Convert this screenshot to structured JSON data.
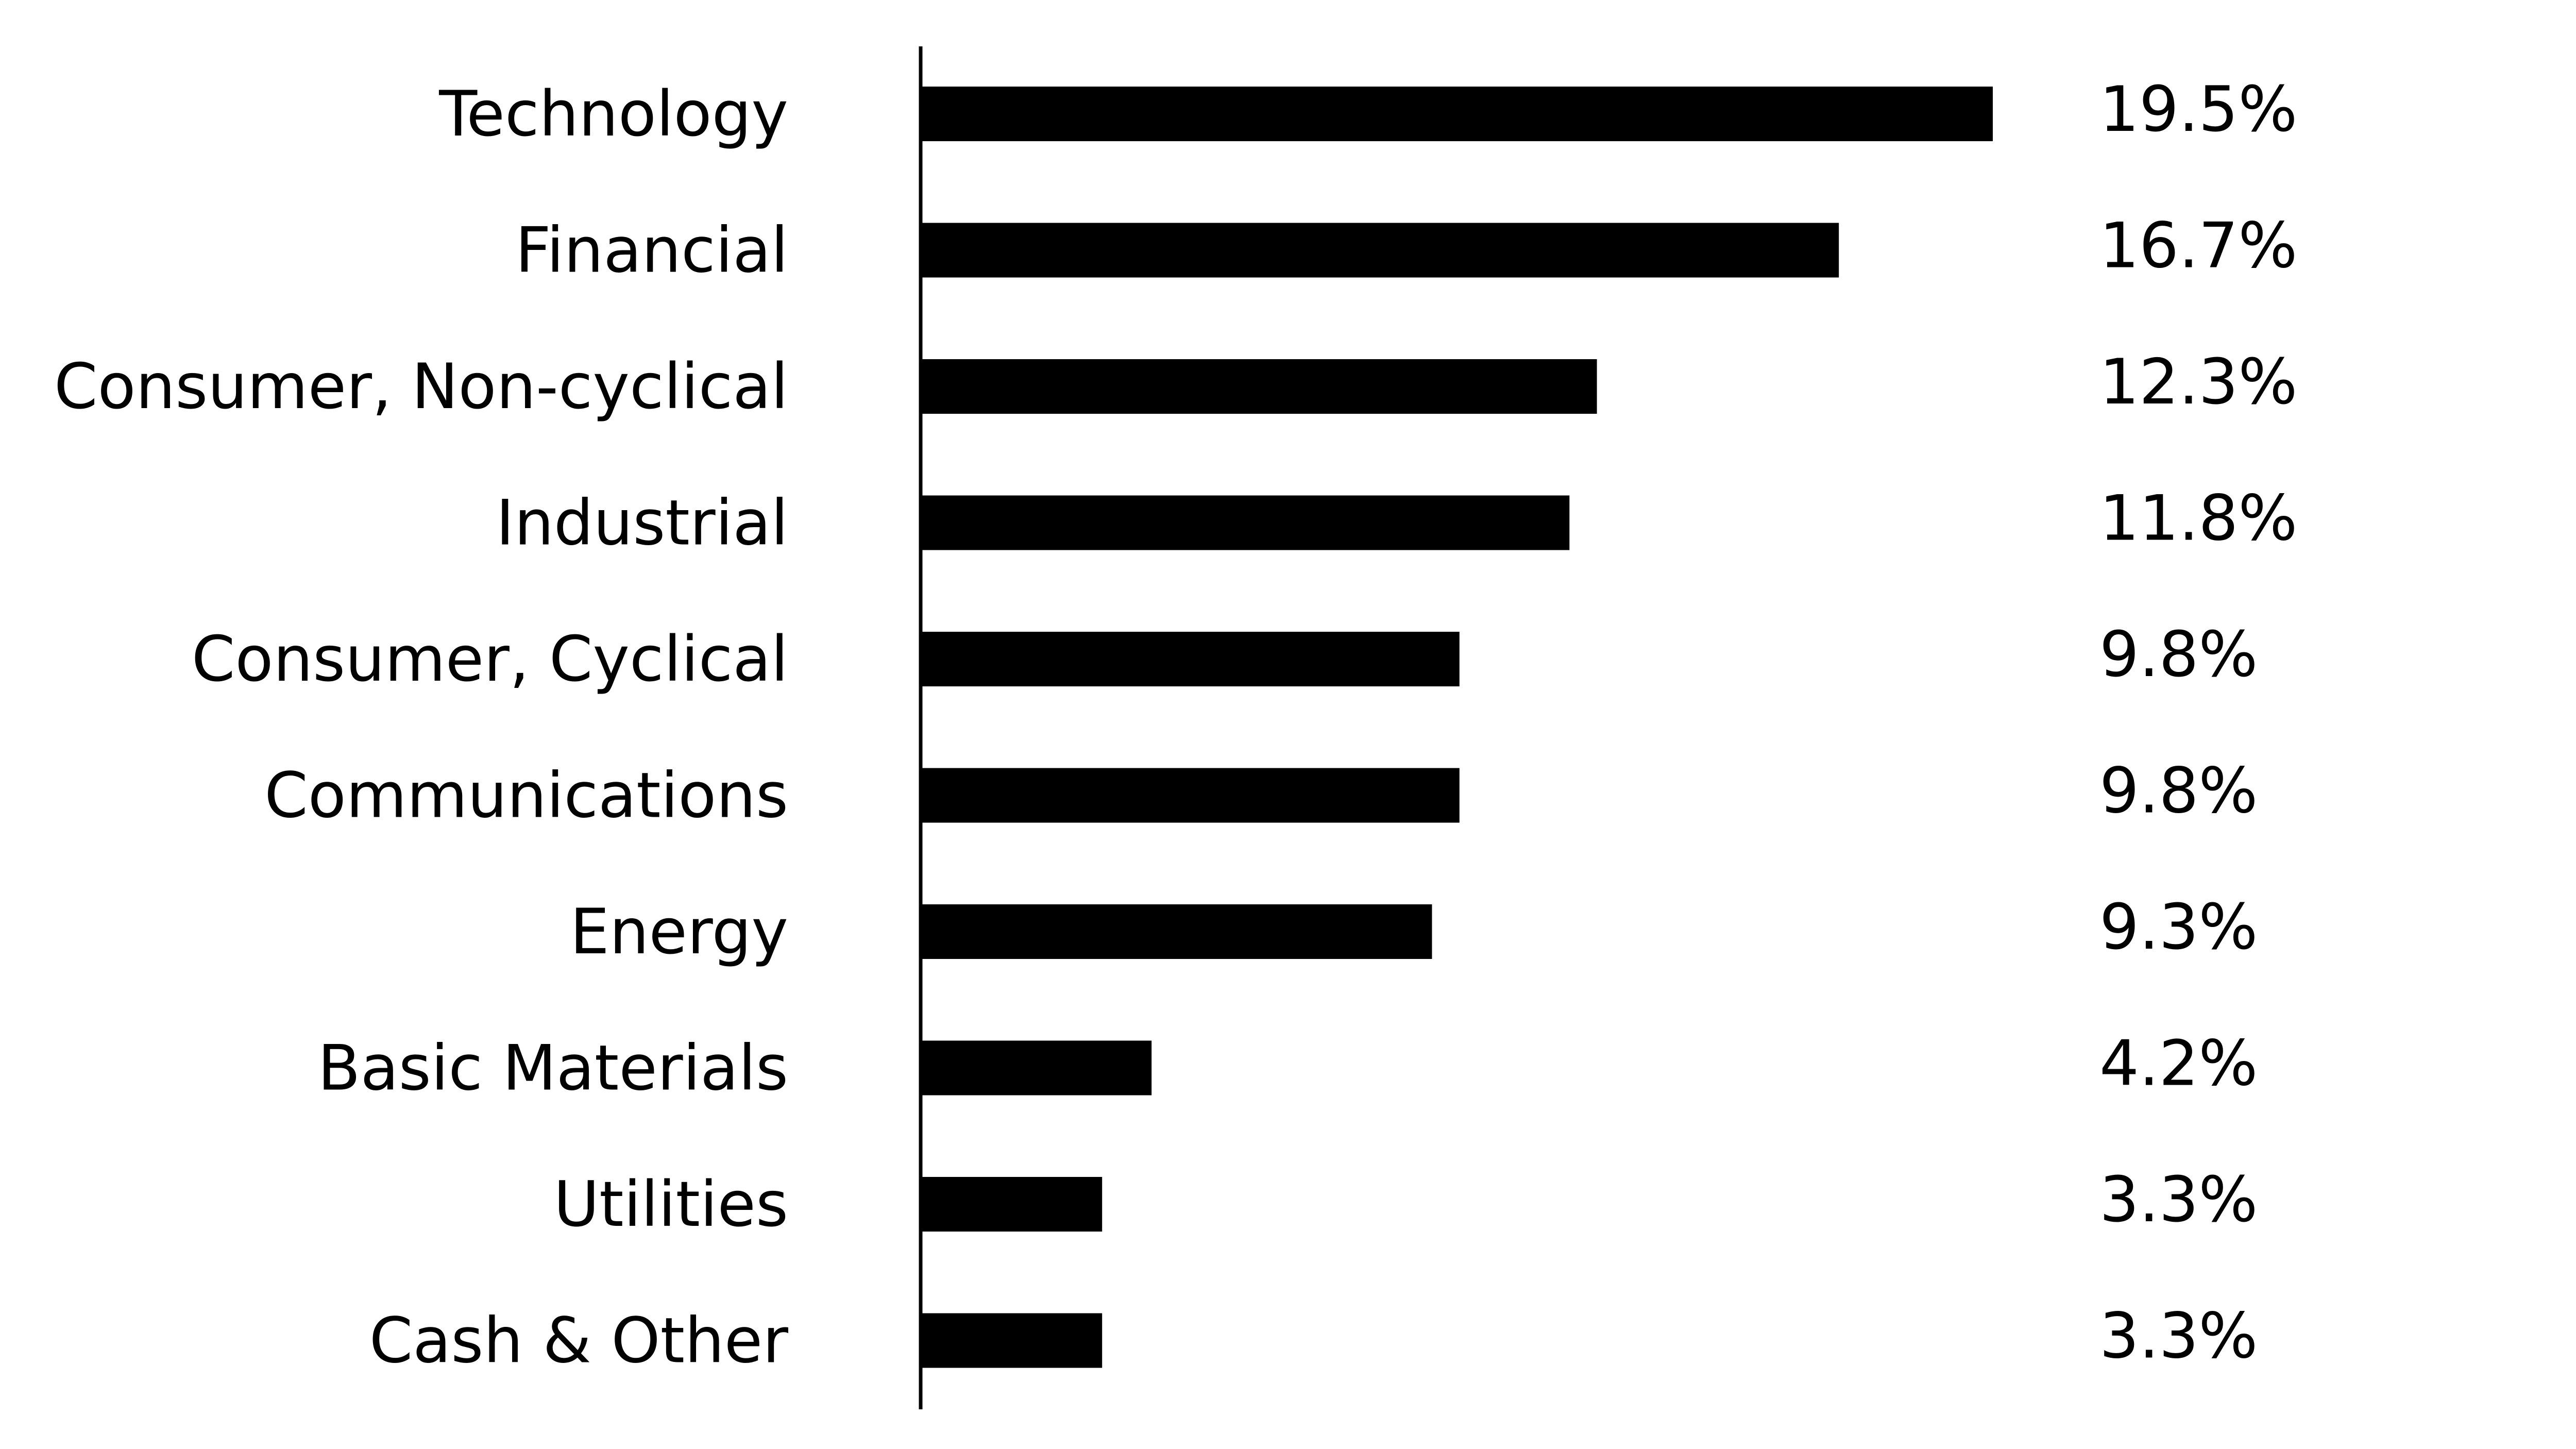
{
  "chart_data": {
    "type": "bar",
    "orientation": "horizontal",
    "categories": [
      "Technology",
      "Financial",
      "Consumer, Non-cyclical",
      "Industrial",
      "Consumer, Cyclical",
      "Communications",
      "Energy",
      "Basic Materials",
      "Utilities",
      "Cash & Other"
    ],
    "values": [
      19.5,
      16.7,
      12.3,
      11.8,
      9.8,
      9.8,
      9.3,
      4.2,
      3.3,
      3.3
    ],
    "value_labels": [
      "19.5%",
      "16.7%",
      "12.3%",
      "11.8%",
      "9.8%",
      "9.8%",
      "9.3%",
      "4.2%",
      "3.3%",
      "3.3%"
    ],
    "unit": "%",
    "title": "",
    "xlabel": "",
    "ylabel": "",
    "xlim": [
      0,
      19.5
    ],
    "grid": false,
    "legend": "none",
    "colors": {
      "bar": "#000000",
      "axis": "#000000",
      "text": "#000000",
      "background": "#ffffff"
    }
  }
}
